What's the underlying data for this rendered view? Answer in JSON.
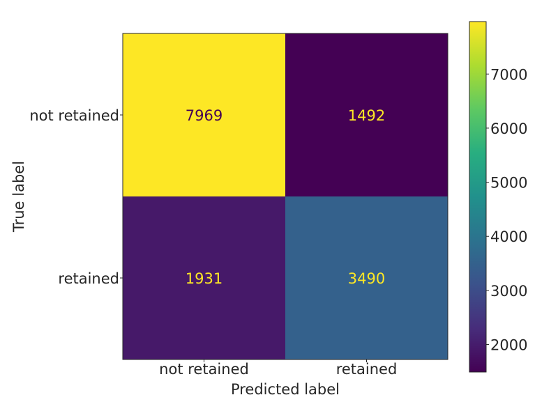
{
  "chart_data": {
    "type": "heatmap",
    "title": "",
    "xlabel": "Predicted label",
    "ylabel": "True label",
    "x_categories": [
      "not retained",
      "retained"
    ],
    "y_categories": [
      "not retained",
      "retained"
    ],
    "values": [
      [
        7969,
        1492
      ],
      [
        1931,
        3490
      ]
    ],
    "colormap": "viridis",
    "colorbar": {
      "ticks": [
        2000,
        3000,
        4000,
        5000,
        6000,
        7000
      ],
      "tick_labels": [
        "2000",
        "3000",
        "4000",
        "5000",
        "6000",
        "7000"
      ],
      "min": 1492,
      "max": 7969
    },
    "grid": false
  },
  "colors": {
    "low": "#440154",
    "high": "#fde725",
    "axis": "#262626"
  }
}
